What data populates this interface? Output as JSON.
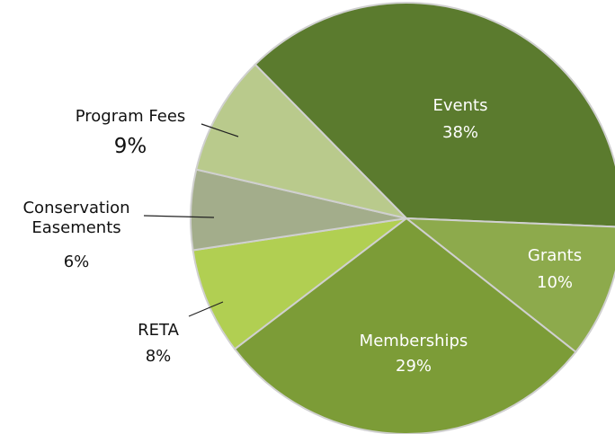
{
  "chart_data": {
    "type": "pie",
    "categories": [
      "Events",
      "Grants",
      "Memberships",
      "RETA",
      "Conservation Easements",
      "Program Fees"
    ],
    "values": [
      38,
      10,
      29,
      8,
      6,
      9
    ],
    "value_labels": [
      "38%",
      "10%",
      "29%",
      "8%",
      "6%",
      "9%"
    ],
    "colors": [
      "#5b7b2e",
      "#8daa4c",
      "#7c9c37",
      "#b1cf52",
      "#a3ad8b",
      "#b9ca8c"
    ]
  }
}
